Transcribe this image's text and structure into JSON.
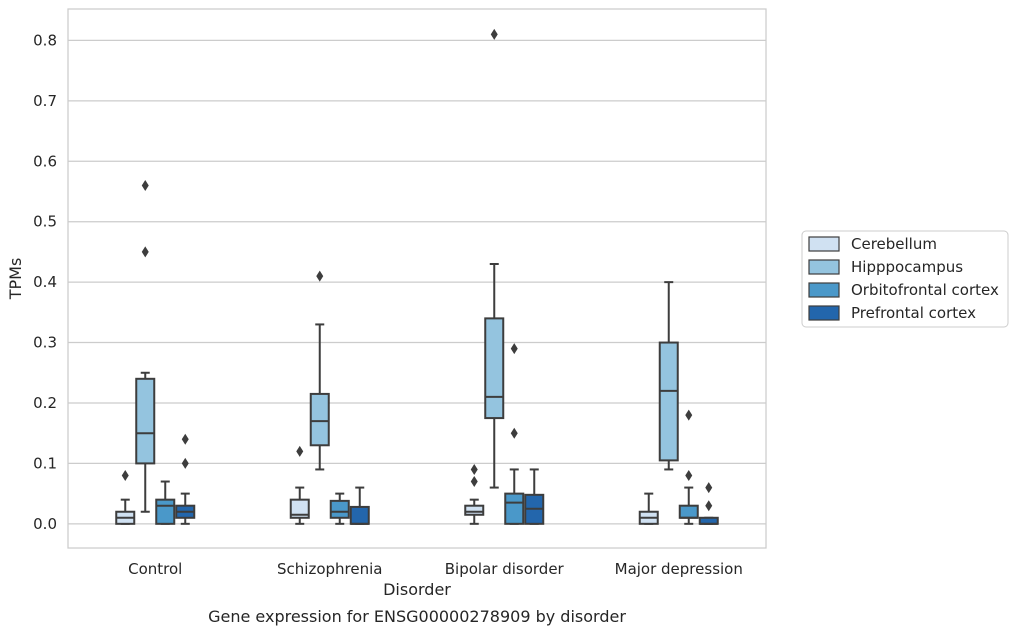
{
  "chart_data": {
    "type": "box",
    "caption": "Gene expression for ENSG00000278909 by disorder",
    "xlabel": "Disorder",
    "ylabel": "TPMs",
    "ylim": [
      -0.04,
      0.852
    ],
    "yticks": [
      0.0,
      0.1,
      0.2,
      0.3,
      0.4,
      0.5,
      0.6,
      0.7,
      0.8
    ],
    "ytick_labels": [
      "0.0",
      "0.1",
      "0.2",
      "0.3",
      "0.4",
      "0.5",
      "0.6",
      "0.7",
      "0.8"
    ],
    "grid": true,
    "legend_position": "right-center",
    "categories": [
      "Control",
      "Schizophrenia",
      "Bipolar disorder",
      "Major depression"
    ],
    "series": [
      {
        "name": "Cerebellum",
        "color": "#d0e1f2",
        "boxes": [
          {
            "category": "Control",
            "whisker_low": 0.0,
            "q1": 0.0,
            "median": 0.01,
            "q3": 0.02,
            "whisker_high": 0.04,
            "outliers": [
              0.08
            ]
          },
          {
            "category": "Schizophrenia",
            "whisker_low": 0.0,
            "q1": 0.01,
            "median": 0.015,
            "q3": 0.04,
            "whisker_high": 0.06,
            "outliers": [
              0.12
            ]
          },
          {
            "category": "Bipolar disorder",
            "whisker_low": 0.0,
            "q1": 0.015,
            "median": 0.02,
            "q3": 0.03,
            "whisker_high": 0.04,
            "outliers": [
              0.07,
              0.09
            ]
          },
          {
            "category": "Major depression",
            "whisker_low": 0.0,
            "q1": 0.0,
            "median": 0.01,
            "q3": 0.02,
            "whisker_high": 0.05,
            "outliers": []
          }
        ]
      },
      {
        "name": "Hipppocampus",
        "color": "#94c4df",
        "boxes": [
          {
            "category": "Control",
            "whisker_low": 0.02,
            "q1": 0.1,
            "median": 0.15,
            "q3": 0.24,
            "whisker_high": 0.25,
            "outliers": [
              0.45,
              0.56
            ]
          },
          {
            "category": "Schizophrenia",
            "whisker_low": 0.09,
            "q1": 0.13,
            "median": 0.17,
            "q3": 0.215,
            "whisker_high": 0.33,
            "outliers": [
              0.41
            ]
          },
          {
            "category": "Bipolar disorder",
            "whisker_low": 0.06,
            "q1": 0.175,
            "median": 0.21,
            "q3": 0.34,
            "whisker_high": 0.43,
            "outliers": [
              0.81
            ]
          },
          {
            "category": "Major depression",
            "whisker_low": 0.09,
            "q1": 0.105,
            "median": 0.22,
            "q3": 0.3,
            "whisker_high": 0.4,
            "outliers": []
          }
        ]
      },
      {
        "name": "Orbitofrontal cortex",
        "color": "#4a98c9",
        "boxes": [
          {
            "category": "Control",
            "whisker_low": 0.0,
            "q1": 0.0,
            "median": 0.03,
            "q3": 0.04,
            "whisker_high": 0.07,
            "outliers": []
          },
          {
            "category": "Schizophrenia",
            "whisker_low": 0.0,
            "q1": 0.01,
            "median": 0.02,
            "q3": 0.038,
            "whisker_high": 0.05,
            "outliers": []
          },
          {
            "category": "Bipolar disorder",
            "whisker_low": 0.0,
            "q1": 0.0,
            "median": 0.035,
            "q3": 0.05,
            "whisker_high": 0.09,
            "outliers": [
              0.15,
              0.29
            ]
          },
          {
            "category": "Major depression",
            "whisker_low": 0.0,
            "q1": 0.01,
            "median": 0.01,
            "q3": 0.03,
            "whisker_high": 0.06,
            "outliers": [
              0.08,
              0.18
            ]
          }
        ]
      },
      {
        "name": "Prefrontal cortex",
        "color": "#2366ac",
        "boxes": [
          {
            "category": "Control",
            "whisker_low": 0.0,
            "q1": 0.01,
            "median": 0.02,
            "q3": 0.03,
            "whisker_high": 0.05,
            "outliers": [
              0.1,
              0.14
            ]
          },
          {
            "category": "Schizophrenia",
            "whisker_low": 0.0,
            "q1": 0.0,
            "median": 0.0,
            "q3": 0.028,
            "whisker_high": 0.06,
            "outliers": []
          },
          {
            "category": "Bipolar disorder",
            "whisker_low": 0.0,
            "q1": 0.0,
            "median": 0.025,
            "q3": 0.048,
            "whisker_high": 0.09,
            "outliers": []
          },
          {
            "category": "Major depression",
            "whisker_low": 0.0,
            "q1": 0.0,
            "median": 0.0,
            "q3": 0.01,
            "whisker_high": 0.01,
            "outliers": [
              0.03,
              0.06
            ]
          }
        ]
      }
    ]
  }
}
